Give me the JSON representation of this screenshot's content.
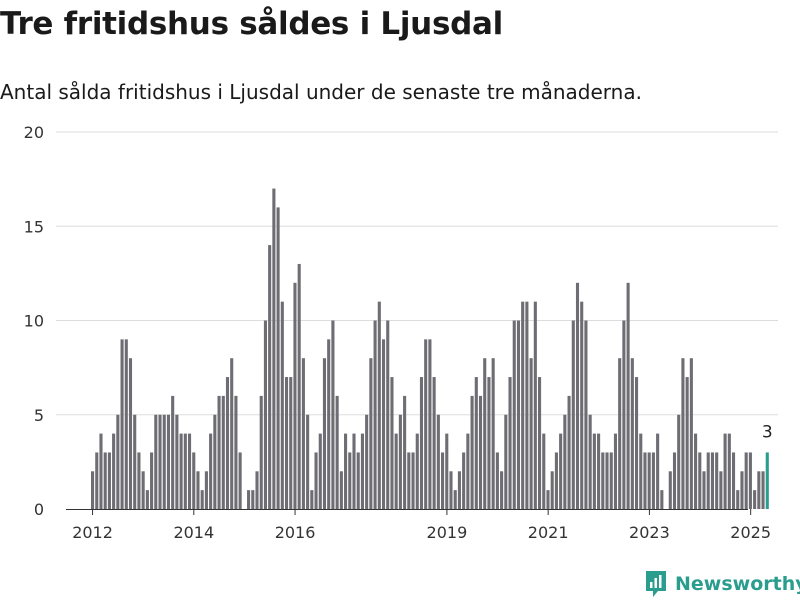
{
  "header": {
    "title": "Tre fritidshus såldes i Ljusdal",
    "subtitle": "Antal sålda fritidshus i Ljusdal under de senaste tre månaderna."
  },
  "brand": {
    "name": "Newsworthy",
    "color": "#2a9d8f"
  },
  "colors": {
    "bar": "#6e6d73",
    "highlight": "#2a9d8f",
    "grid": "#dddddd"
  },
  "chart_data": {
    "type": "bar",
    "ylim": [
      0,
      20
    ],
    "yticks": [
      0,
      5,
      10,
      15,
      20
    ],
    "xticks": [
      "2012",
      "2014",
      "2016",
      "2019",
      "2021",
      "2023",
      "2025"
    ],
    "xtick_positions": [
      2012.0,
      2014.0,
      2016.0,
      2019.0,
      2021.0,
      2023.0,
      2025.0
    ],
    "x_start": 2012.0,
    "x_step": 0.0833,
    "grid": true,
    "annotation": {
      "text": "3"
    },
    "values": [
      2,
      3,
      4,
      3,
      3,
      4,
      5,
      9,
      9,
      8,
      5,
      3,
      2,
      1,
      3,
      5,
      5,
      5,
      5,
      6,
      5,
      4,
      4,
      4,
      3,
      2,
      1,
      2,
      4,
      5,
      6,
      6,
      7,
      8,
      6,
      3,
      0,
      1,
      1,
      2,
      6,
      10,
      14,
      17,
      16,
      11,
      7,
      7,
      12,
      13,
      8,
      5,
      1,
      3,
      4,
      8,
      9,
      10,
      6,
      2,
      4,
      3,
      4,
      3,
      4,
      5,
      8,
      10,
      11,
      9,
      10,
      7,
      4,
      5,
      6,
      3,
      3,
      4,
      7,
      9,
      9,
      7,
      5,
      3,
      4,
      2,
      1,
      2,
      3,
      4,
      6,
      7,
      6,
      8,
      7,
      8,
      3,
      2,
      5,
      7,
      10,
      10,
      11,
      11,
      8,
      11,
      7,
      4,
      1,
      2,
      3,
      4,
      5,
      6,
      10,
      12,
      11,
      10,
      5,
      4,
      4,
      3,
      3,
      3,
      4,
      8,
      10,
      12,
      8,
      7,
      4,
      3,
      3,
      3,
      4,
      1,
      0,
      2,
      3,
      5,
      8,
      7,
      8,
      4,
      3,
      2,
      3,
      3,
      3,
      2,
      4,
      4,
      3,
      1,
      2,
      3,
      3,
      1,
      2,
      2,
      3
    ]
  }
}
